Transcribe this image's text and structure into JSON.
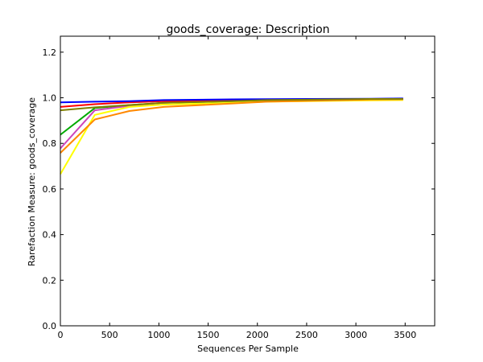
{
  "chart_data": {
    "type": "line",
    "title": "goods_coverage: Description",
    "xlabel": "Sequences Per Sample",
    "ylabel": "Rarefaction Measure: goods_coverage",
    "xlim": [
      0,
      3800
    ],
    "ylim": [
      0.0,
      1.27
    ],
    "xticks": [
      0,
      500,
      1000,
      1500,
      2000,
      2500,
      3000,
      3500
    ],
    "xtick_labels": [
      "0",
      "500",
      "1000",
      "1500",
      "2000",
      "2500",
      "3000",
      "3500"
    ],
    "yticks": [
      0.0,
      0.2,
      0.4,
      0.6,
      0.8,
      1.0,
      1.2
    ],
    "ytick_labels": [
      "0.0",
      "0.2",
      "0.4",
      "0.6",
      "0.8",
      "1.0",
      "1.2"
    ],
    "grid": false,
    "legend": "none",
    "series": [
      {
        "color": "#00aa00",
        "x": [
          0,
          350,
          700,
          1050,
          1750,
          2100,
          3150,
          3480
        ],
        "y": [
          0.838,
          0.955,
          0.968,
          0.978,
          0.985,
          0.99,
          0.993,
          0.994
        ]
      },
      {
        "color": "#cc44bb",
        "x": [
          0,
          350,
          700,
          1050,
          1750,
          2100,
          3150,
          3480
        ],
        "y": [
          0.778,
          0.945,
          0.965,
          0.978,
          0.988,
          0.992,
          0.995,
          0.995
        ]
      },
      {
        "color": "#ffff00",
        "x": [
          0,
          350,
          700,
          1050,
          1750,
          2100,
          3150,
          3480
        ],
        "y": [
          0.665,
          0.925,
          0.96,
          0.97,
          0.978,
          0.983,
          0.989,
          0.99
        ]
      },
      {
        "color": "#ff8800",
        "x": [
          0,
          350,
          700,
          1050,
          1750,
          2100,
          3150,
          3480
        ],
        "y": [
          0.758,
          0.905,
          0.942,
          0.96,
          0.975,
          0.983,
          0.992,
          0.993
        ]
      },
      {
        "color": "#ff0000",
        "x": [
          0,
          350,
          700,
          1050,
          1750,
          2100,
          3150,
          3480
        ],
        "y": [
          0.96,
          0.972,
          0.98,
          0.985,
          0.99,
          0.992,
          0.995,
          0.996
        ]
      },
      {
        "color": "#0000ff",
        "x": [
          0,
          350,
          700,
          1050,
          1750,
          2100,
          3150,
          3480
        ],
        "y": [
          0.98,
          0.983,
          0.985,
          0.99,
          0.993,
          0.994,
          0.996,
          0.997
        ]
      },
      {
        "color": "#808000",
        "x": [
          0,
          350,
          700,
          1050,
          1750,
          2100,
          3150,
          3480
        ],
        "y": [
          0.945,
          0.958,
          0.968,
          0.978,
          0.985,
          0.99,
          0.995,
          0.995
        ]
      }
    ]
  }
}
